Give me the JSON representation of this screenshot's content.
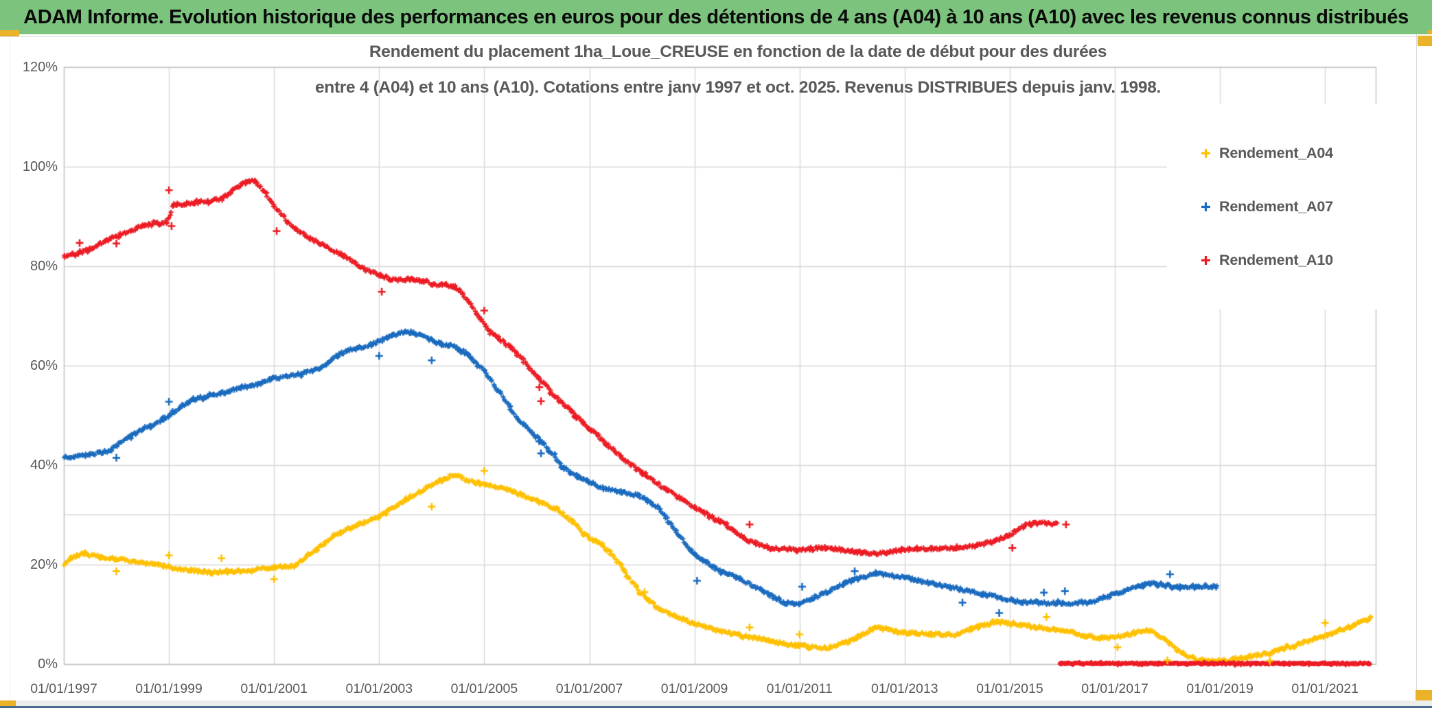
{
  "header": {
    "title": "ADAM Informe. Evolution historique des performances en euros pour des détentions de 4 ans (A04) à 10 ans (A10) avec les revenus connus distribués",
    "bg_color": "#7CC47E",
    "text_color": "#0B0B0B"
  },
  "chart": {
    "title_line1": "Rendement du placement 1ha_Loue_CREUSE en fonction de la date de début pour des durées",
    "title_line2": "entre 4 (A04) et 10 ans (A10). Cotations entre janv 1997 et oct. 2025. Revenus DISTRIBUES depuis janv. 1998.",
    "text_color": "#595959",
    "grid_color": "#D6D6D6",
    "border_color": "#C4C4C4",
    "y_tick_labels": [
      "120%",
      "100%",
      "80%",
      "60%",
      "40%",
      "20%",
      "0%"
    ],
    "x_tick_labels": [
      "01/01/1997",
      "01/01/1999",
      "01/01/2001",
      "01/01/2003",
      "01/01/2005",
      "01/01/2007",
      "01/01/2009",
      "01/01/2011",
      "01/01/2013",
      "01/01/2015",
      "01/01/2017",
      "01/01/2019",
      "01/01/2021"
    ],
    "legend": [
      {
        "label": "Rendement_A04",
        "color": "#FFC000"
      },
      {
        "label": "Rendement_A07",
        "color": "#1A6BBF"
      },
      {
        "label": "Rendement_A10",
        "color": "#EC1C24"
      }
    ]
  },
  "chart_data": {
    "type": "scatter",
    "marker": "+",
    "title": "Rendement du placement 1ha_Loue_CREUSE en fonction de la date de début pour des durées entre 4 (A04) et 10 ans (A10). Cotations entre janv 1997 et oct. 2025. Revenus DISTRIBUES depuis janv. 1998.",
    "x_axis": {
      "type": "date",
      "min_year": 1997.0,
      "max_year": 2022.0,
      "tick_years": [
        1997,
        1999,
        2001,
        2003,
        2005,
        2007,
        2009,
        2011,
        2013,
        2015,
        2017,
        2019,
        2021
      ],
      "tick_format": "01/01/YYYY",
      "gridlines": true
    },
    "y_axis": {
      "min": 0,
      "max": 120,
      "unit": "%",
      "major_step": 20,
      "extra_reference_line": 30,
      "gridlines": true
    },
    "legend_position": "right",
    "series": [
      {
        "name": "Rendement_A04",
        "color": "#FFC000",
        "points": [
          [
            1997.0,
            19.8
          ],
          [
            1997.15,
            21.3
          ],
          [
            1997.4,
            22.2
          ],
          [
            1997.7,
            21.5
          ],
          [
            1998.0,
            21.1
          ],
          [
            1998.35,
            20.6
          ],
          [
            1998.7,
            20.0
          ],
          [
            1999.0,
            19.4
          ],
          [
            1999.4,
            18.8
          ],
          [
            1999.8,
            18.3
          ],
          [
            2000.1,
            18.5
          ],
          [
            2000.5,
            18.8
          ],
          [
            2001.0,
            19.3
          ],
          [
            2001.4,
            19.8
          ],
          [
            2001.8,
            22.9
          ],
          [
            2002.2,
            26.1
          ],
          [
            2002.65,
            28.2
          ],
          [
            2003.0,
            29.6
          ],
          [
            2003.5,
            33.0
          ],
          [
            2003.95,
            35.6
          ],
          [
            2004.2,
            37.0
          ],
          [
            2004.45,
            38.1
          ],
          [
            2004.7,
            36.8
          ],
          [
            2005.0,
            36.0
          ],
          [
            2005.5,
            34.9
          ],
          [
            2006.0,
            32.6
          ],
          [
            2006.4,
            31.0
          ],
          [
            2006.7,
            28.5
          ],
          [
            2006.9,
            26.0
          ],
          [
            2007.25,
            23.9
          ],
          [
            2007.6,
            19.7
          ],
          [
            2007.95,
            14.4
          ],
          [
            2008.3,
            11.2
          ],
          [
            2008.65,
            9.5
          ],
          [
            2009.0,
            8.0
          ],
          [
            2009.4,
            6.8
          ],
          [
            2009.85,
            5.7
          ],
          [
            2010.3,
            5.0
          ],
          [
            2010.7,
            4.0
          ],
          [
            2011.0,
            3.6
          ],
          [
            2011.5,
            3.1
          ],
          [
            2012.0,
            4.7
          ],
          [
            2012.45,
            7.3
          ],
          [
            2013.0,
            6.3
          ],
          [
            2013.5,
            6.0
          ],
          [
            2014.0,
            5.8
          ],
          [
            2014.4,
            7.5
          ],
          [
            2014.75,
            8.4
          ],
          [
            2015.2,
            7.9
          ],
          [
            2015.55,
            7.2
          ],
          [
            2016.0,
            6.8
          ],
          [
            2016.45,
            5.6
          ],
          [
            2016.8,
            5.2
          ],
          [
            2017.2,
            5.7
          ],
          [
            2017.6,
            6.8
          ],
          [
            2017.75,
            6.3
          ],
          [
            2017.95,
            5.0
          ],
          [
            2018.2,
            2.5
          ],
          [
            2018.6,
            0.7
          ],
          [
            2019.1,
            0.6
          ],
          [
            2019.5,
            1.3
          ],
          [
            2019.95,
            2.2
          ],
          [
            2020.4,
            3.6
          ],
          [
            2020.8,
            5.0
          ],
          [
            2021.05,
            5.7
          ],
          [
            2021.45,
            7.4
          ],
          [
            2021.8,
            8.9
          ],
          [
            2021.88,
            9.3
          ]
        ],
        "outliers": [
          [
            1998.0,
            18.6
          ],
          [
            1999.0,
            21.8
          ],
          [
            2000.0,
            21.2
          ],
          [
            2001.0,
            17.0
          ],
          [
            2004.0,
            31.6
          ],
          [
            2005.0,
            38.8
          ],
          [
            2008.05,
            14.4
          ],
          [
            2010.05,
            7.3
          ],
          [
            2011.0,
            5.9
          ],
          [
            2015.7,
            9.4
          ],
          [
            2017.05,
            3.3
          ],
          [
            2018.0,
            0.7
          ],
          [
            2019.95,
            0.6
          ],
          [
            2021.0,
            8.2
          ]
        ]
      },
      {
        "name": "Rendement_A07",
        "color": "#1A6BBF",
        "points": [
          [
            1997.0,
            41.5
          ],
          [
            1997.5,
            42.0
          ],
          [
            1997.9,
            43.0
          ],
          [
            1998.05,
            44.2
          ],
          [
            1998.3,
            45.9
          ],
          [
            1998.65,
            47.8
          ],
          [
            1999.0,
            49.8
          ],
          [
            1999.2,
            51.5
          ],
          [
            1999.45,
            53.0
          ],
          [
            1999.7,
            53.8
          ],
          [
            2000.1,
            54.6
          ],
          [
            2000.4,
            55.6
          ],
          [
            2000.7,
            56.2
          ],
          [
            2001.0,
            57.4
          ],
          [
            2001.6,
            58.5
          ],
          [
            2002.0,
            60.0
          ],
          [
            2002.12,
            61.5
          ],
          [
            2002.4,
            62.9
          ],
          [
            2002.9,
            64.4
          ],
          [
            2003.2,
            65.8
          ],
          [
            2003.5,
            66.8
          ],
          [
            2003.6,
            66.6
          ],
          [
            2003.95,
            65.3
          ],
          [
            2004.05,
            64.6
          ],
          [
            2004.35,
            64.0
          ],
          [
            2004.55,
            63.2
          ],
          [
            2004.7,
            62.0
          ],
          [
            2005.0,
            58.8
          ],
          [
            2005.3,
            54.5
          ],
          [
            2005.6,
            49.8
          ],
          [
            2005.9,
            46.3
          ],
          [
            2006.1,
            44.6
          ],
          [
            2006.5,
            39.5
          ],
          [
            2006.8,
            37.5
          ],
          [
            2007.0,
            36.6
          ],
          [
            2007.3,
            35.2
          ],
          [
            2007.6,
            34.6
          ],
          [
            2007.95,
            33.8
          ],
          [
            2008.1,
            32.8
          ],
          [
            2008.3,
            31.6
          ],
          [
            2008.65,
            26.6
          ],
          [
            2009.0,
            21.9
          ],
          [
            2009.4,
            19.2
          ],
          [
            2009.85,
            17.1
          ],
          [
            2010.3,
            14.6
          ],
          [
            2010.7,
            12.2
          ],
          [
            2011.0,
            12.0
          ],
          [
            2011.5,
            14.3
          ],
          [
            2012.0,
            16.8
          ],
          [
            2012.5,
            18.1
          ],
          [
            2013.0,
            17.3
          ],
          [
            2013.5,
            16.2
          ],
          [
            2014.05,
            15.0
          ],
          [
            2014.5,
            14.0
          ],
          [
            2014.85,
            13.2
          ],
          [
            2015.25,
            12.4
          ],
          [
            2016.0,
            12.1
          ],
          [
            2016.5,
            12.3
          ],
          [
            2016.8,
            13.2
          ],
          [
            2017.1,
            14.4
          ],
          [
            2017.4,
            15.4
          ],
          [
            2017.65,
            16.1
          ],
          [
            2017.9,
            15.9
          ],
          [
            2018.2,
            15.4
          ],
          [
            2018.6,
            15.4
          ],
          [
            2018.95,
            15.5
          ]
        ],
        "outliers": [
          [
            1998.0,
            41.4
          ],
          [
            1999.0,
            52.7
          ],
          [
            2003.0,
            61.9
          ],
          [
            2004.0,
            61.0
          ],
          [
            2006.05,
            44.7
          ],
          [
            2006.08,
            42.3
          ],
          [
            2009.05,
            16.7
          ],
          [
            2011.05,
            15.5
          ],
          [
            2012.05,
            18.6
          ],
          [
            2014.1,
            12.3
          ],
          [
            2014.8,
            10.2
          ],
          [
            2015.65,
            14.3
          ],
          [
            2016.05,
            14.6
          ],
          [
            2018.05,
            18.0
          ]
        ]
      },
      {
        "name": "Rendement_A10",
        "color": "#EC1C24",
        "points": [
          [
            1997.0,
            81.8
          ],
          [
            1997.5,
            83.3
          ],
          [
            1998.0,
            86.0
          ],
          [
            1998.5,
            88.0
          ],
          [
            1998.95,
            88.8
          ],
          [
            1999.1,
            92.2
          ],
          [
            1999.6,
            92.8
          ],
          [
            2000.0,
            93.4
          ],
          [
            2000.2,
            95.0
          ],
          [
            2000.45,
            96.8
          ],
          [
            2000.62,
            97.0
          ],
          [
            2000.8,
            95.2
          ],
          [
            2001.0,
            92.0
          ],
          [
            2001.4,
            87.3
          ],
          [
            2001.85,
            84.6
          ],
          [
            2002.3,
            82.2
          ],
          [
            2002.7,
            79.4
          ],
          [
            2003.0,
            78.2
          ],
          [
            2003.25,
            77.2
          ],
          [
            2003.6,
            77.3
          ],
          [
            2003.9,
            76.9
          ],
          [
            2004.0,
            76.3
          ],
          [
            2004.45,
            75.8
          ],
          [
            2004.7,
            72.8
          ],
          [
            2005.0,
            68.3
          ],
          [
            2005.12,
            66.6
          ],
          [
            2005.5,
            63.7
          ],
          [
            2006.0,
            57.8
          ],
          [
            2006.5,
            52.2
          ],
          [
            2007.0,
            47.3
          ],
          [
            2007.5,
            42.5
          ],
          [
            2008.0,
            38.4
          ],
          [
            2008.5,
            34.8
          ],
          [
            2009.0,
            31.4
          ],
          [
            2009.5,
            28.6
          ],
          [
            2010.0,
            24.9
          ],
          [
            2010.45,
            23.2
          ],
          [
            2011.0,
            23.0
          ],
          [
            2011.5,
            23.3
          ],
          [
            2012.0,
            22.6
          ],
          [
            2012.45,
            22.1
          ],
          [
            2013.0,
            22.9
          ],
          [
            2013.5,
            23.1
          ],
          [
            2014.0,
            23.4
          ],
          [
            2014.4,
            23.9
          ],
          [
            2014.7,
            24.6
          ],
          [
            2015.0,
            26.0
          ],
          [
            2015.3,
            27.8
          ],
          [
            2015.5,
            28.3
          ],
          [
            2015.9,
            28.1
          ]
        ],
        "zero_segment": [
          [
            2015.95,
            0.05
          ],
          [
            2021.85,
            0.05
          ]
        ],
        "outliers": [
          [
            1997.3,
            84.6
          ],
          [
            1998.0,
            84.5
          ],
          [
            1999.0,
            95.2
          ],
          [
            1999.05,
            88.0
          ],
          [
            2001.05,
            87.0
          ],
          [
            2003.05,
            74.8
          ],
          [
            2005.0,
            71.0
          ],
          [
            2006.05,
            55.6
          ],
          [
            2006.08,
            52.8
          ],
          [
            2010.05,
            28.0
          ],
          [
            2015.05,
            23.3
          ],
          [
            2016.07,
            28.0
          ]
        ]
      }
    ]
  },
  "chrome": {
    "accent_gold": "#E9B229",
    "scroll_track_color": "#EDEDED",
    "bottom_bar_color": "#4A6B90",
    "strip_border_color": "#D9D9D9"
  }
}
